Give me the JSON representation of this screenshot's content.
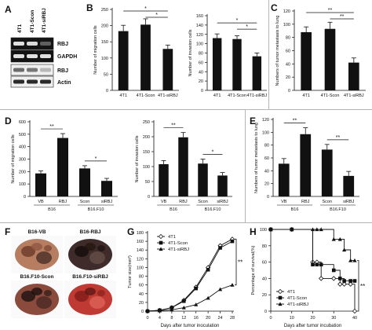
{
  "panels": {
    "A": {
      "letter": "A",
      "columns": [
        "4T1",
        "4T1-Scon",
        "4T1-siRBJ"
      ],
      "bands": [
        "RBJ",
        "GAPDH",
        "RBJ",
        "Actin"
      ]
    },
    "F": {
      "letter": "F",
      "images": [
        "B16-VB",
        "B16-RBJ",
        "B16.F10-Scon",
        "B16.F10-siRBJ"
      ]
    }
  },
  "chart_data": [
    {
      "id": "B1",
      "panel": "B",
      "type": "bar",
      "categories": [
        "4T1",
        "4T1-Scon",
        "4T1-siRBJ"
      ],
      "values": [
        183,
        203,
        128
      ],
      "errors": [
        18,
        18,
        12
      ],
      "ylabel": "Number of migration cells",
      "xlabel": "",
      "title": "",
      "ylim": [
        0,
        250
      ],
      "yticks": [
        0,
        50,
        100,
        150,
        200,
        250
      ],
      "significance": [
        {
          "from": 0,
          "to": 2,
          "label": "*"
        },
        {
          "from": 1,
          "to": 2,
          "label": "*"
        }
      ]
    },
    {
      "id": "B2",
      "type": "bar",
      "categories": [
        "4T1",
        "4T1-Scon",
        "4T1-siRBJ"
      ],
      "values": [
        112,
        110,
        73
      ],
      "errors": [
        9,
        7,
        7
      ],
      "ylabel": "Number of invasion cells",
      "xlabel": "",
      "title": "",
      "ylim": [
        0,
        160
      ],
      "yticks": [
        0,
        20,
        40,
        60,
        80,
        100,
        120,
        140,
        160
      ],
      "significance": [
        {
          "from": 0,
          "to": 2,
          "label": "*"
        },
        {
          "from": 1,
          "to": 2,
          "label": "*"
        }
      ]
    },
    {
      "id": "C",
      "panel": "C",
      "type": "bar",
      "categories": [
        "4T1",
        "4T1-Scon",
        "4T1-siRBJ"
      ],
      "values": [
        88,
        93,
        42
      ],
      "errors": [
        8,
        10,
        7
      ],
      "ylabel": "Numbers of tumor metastasis to lung",
      "xlabel": "",
      "title": "",
      "ylim": [
        0,
        120
      ],
      "yticks": [
        0,
        20,
        40,
        60,
        80,
        100,
        120
      ],
      "significance": [
        {
          "from": 0,
          "to": 2,
          "label": "**"
        },
        {
          "from": 1,
          "to": 2,
          "label": "**"
        }
      ]
    },
    {
      "id": "D1",
      "panel": "D",
      "type": "bar",
      "categories": [
        "VB",
        "RBJ",
        "Scon",
        "siRBJ"
      ],
      "groups": [
        {
          "label": "B16",
          "from": 0,
          "to": 1
        },
        {
          "label": "B16.F10",
          "from": 2,
          "to": 3
        }
      ],
      "values": [
        185,
        470,
        225,
        125
      ],
      "errors": [
        20,
        35,
        22,
        20
      ],
      "ylabel": "Number of migration cells",
      "xlabel": "",
      "title": "",
      "ylim": [
        0,
        600
      ],
      "yticks": [
        0,
        100,
        200,
        300,
        400,
        500,
        600
      ],
      "significance": [
        {
          "from": 0,
          "to": 1,
          "label": "**"
        },
        {
          "from": 2,
          "to": 3,
          "label": "*"
        }
      ]
    },
    {
      "id": "D2",
      "type": "bar",
      "categories": [
        "VB",
        "RBJ",
        "Scon",
        "siRBJ"
      ],
      "groups": [
        {
          "label": "B16",
          "from": 0,
          "to": 1
        },
        {
          "label": "B16.F10",
          "from": 2,
          "to": 3
        }
      ],
      "values": [
        108,
        198,
        110,
        70
      ],
      "errors": [
        12,
        16,
        15,
        10
      ],
      "ylabel": "Number of invasion cells",
      "xlabel": "",
      "title": "",
      "ylim": [
        0,
        250
      ],
      "yticks": [
        0,
        50,
        100,
        150,
        200,
        250
      ],
      "significance": [
        {
          "from": 0,
          "to": 1,
          "label": "**"
        },
        {
          "from": 2,
          "to": 3,
          "label": "*"
        }
      ]
    },
    {
      "id": "E",
      "panel": "E",
      "type": "bar",
      "categories": [
        "VB",
        "RBJ",
        "Scon",
        "siRBJ"
      ],
      "groups": [
        {
          "label": "B16",
          "from": 0,
          "to": 1
        },
        {
          "label": "B16.F10",
          "from": 2,
          "to": 3
        }
      ],
      "values": [
        51,
        97,
        73,
        32
      ],
      "errors": [
        8,
        10,
        8,
        7
      ],
      "ylabel": "Numbers of tumor metastasis to lung",
      "xlabel": "",
      "title": "",
      "ylim": [
        0,
        120
      ],
      "yticks": [
        0,
        20,
        40,
        60,
        80,
        100,
        120
      ],
      "significance": [
        {
          "from": 0,
          "to": 1,
          "label": "**"
        },
        {
          "from": 2,
          "to": 3,
          "label": "**"
        }
      ]
    },
    {
      "id": "G",
      "panel": "G",
      "type": "line",
      "x": [
        0,
        4,
        8,
        12,
        16,
        20,
        24,
        28
      ],
      "series": [
        {
          "name": "4T1",
          "marker": "diamond",
          "values": [
            0,
            2,
            8,
            25,
            55,
            100,
            150,
            165
          ]
        },
        {
          "name": "4T1-Scon",
          "marker": "square",
          "values": [
            0,
            2,
            8,
            23,
            52,
            95,
            145,
            160
          ]
        },
        {
          "name": "4T1-siRBJ",
          "marker": "triangle",
          "values": [
            0,
            1,
            3,
            8,
            15,
            30,
            50,
            60
          ]
        }
      ],
      "xlabel": "Days after tumor inoculation",
      "ylabel": "Tumor size(mm³)",
      "title": "",
      "xlim": [
        0,
        28
      ],
      "xticks": [
        0,
        4,
        8,
        12,
        16,
        20,
        24,
        28
      ],
      "ylim": [
        0,
        180
      ],
      "yticks": [
        0,
        20,
        40,
        60,
        80,
        100,
        120,
        140,
        160,
        180
      ],
      "legend": "top-left",
      "annotation": "**"
    },
    {
      "id": "H",
      "panel": "H",
      "type": "line",
      "step": true,
      "x": [
        0,
        10,
        20,
        22,
        24,
        30,
        33,
        35,
        38,
        40
      ],
      "series": [
        {
          "name": "4T1",
          "marker": "diamond",
          "values": [
            100,
            100,
            60,
            60,
            40,
            40,
            33,
            33,
            33,
            0
          ]
        },
        {
          "name": "4T1-Scon",
          "marker": "square",
          "values": [
            100,
            100,
            57,
            57,
            57,
            50,
            40,
            37,
            37,
            37
          ]
        },
        {
          "name": "4T1-siRBJ",
          "marker": "triangle",
          "values": [
            100,
            100,
            100,
            100,
            100,
            88,
            88,
            75,
            62,
            62
          ]
        }
      ],
      "xlabel": "Days after tumor incubation",
      "ylabel": "Percentage of survival(%)",
      "title": "",
      "xlim": [
        0,
        40
      ],
      "xticks": [
        0,
        10,
        20,
        30,
        40
      ],
      "ylim": [
        0,
        100
      ],
      "yticks": [
        0,
        20,
        40,
        60,
        80,
        100
      ],
      "legend": "bottom-left",
      "annotation": "**"
    }
  ]
}
